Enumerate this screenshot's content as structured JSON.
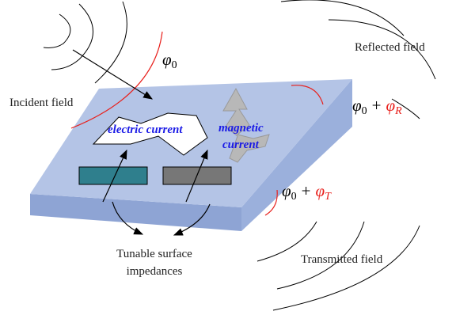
{
  "labels": {
    "incident": "Incident field",
    "reflected": "Reflected field",
    "transmitted": "Transmitted field",
    "electric": "electric current",
    "magnetic": [
      "magnetic",
      "current"
    ],
    "impedances": [
      "Tunable surface",
      "impedances"
    ]
  },
  "phases": {
    "incident": {
      "symbol": "φ",
      "sub": "0"
    },
    "reflected": {
      "symbol": "φ",
      "sub": "0",
      "op": "+",
      "shift_symbol": "φ",
      "shift_sub": "R"
    },
    "transmitted": {
      "symbol": "φ",
      "sub": "0",
      "op": "+",
      "shift_symbol": "φ",
      "shift_sub": "T"
    }
  }
}
